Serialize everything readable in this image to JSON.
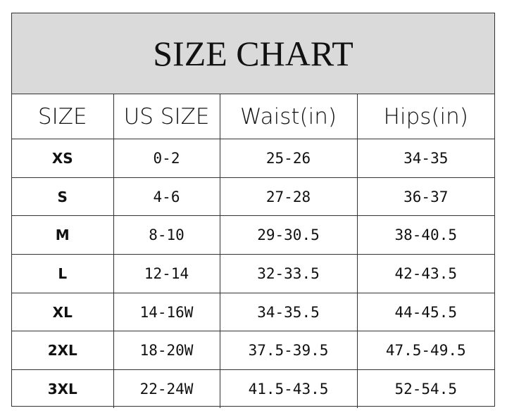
{
  "title": "SIZE CHART",
  "headers": [
    "SIZE",
    "US SIZE",
    "Waist(in)",
    "Hips(in)"
  ],
  "rows": [
    [
      "XS",
      "0-2",
      "25-26",
      "34-35"
    ],
    [
      "S",
      "4-6",
      "27-28",
      "36-37"
    ],
    [
      "M",
      "8-10",
      "29-30.5",
      "38-40.5"
    ],
    [
      "L",
      "12-14",
      "32-33.5",
      "42-43.5"
    ],
    [
      "XL",
      "14-16W",
      "34-35.5",
      "44-45.5"
    ],
    [
      "2XL",
      "18-20W",
      "37.5-39.5",
      "47.5-49.5"
    ],
    [
      "3XL",
      "22-24W",
      "41.5-43.5",
      "52-54.5"
    ]
  ],
  "colors": {
    "title_band": "#dadada",
    "border": "#333333",
    "text": "#111111"
  }
}
